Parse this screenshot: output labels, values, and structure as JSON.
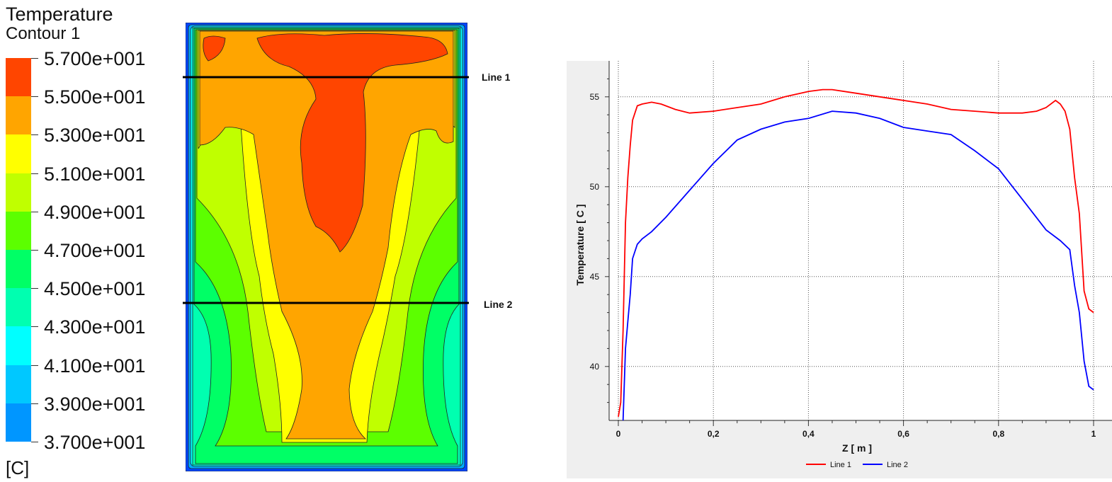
{
  "legend": {
    "title": "Temperature",
    "subtitle": "Contour 1",
    "unit": "[C]",
    "ticks": [
      "5.700e+001",
      "5.500e+001",
      "5.300e+001",
      "5.100e+001",
      "4.900e+001",
      "4.700e+001",
      "4.500e+001",
      "4.300e+001",
      "4.100e+001",
      "3.900e+001",
      "3.700e+001"
    ],
    "colors": [
      "#ff4500",
      "#ffa500",
      "#ffff00",
      "#c0ff00",
      "#5cff00",
      "#00ff66",
      "#00ffb0",
      "#00ffff",
      "#00c8ff",
      "#0096ff",
      "#0046ff"
    ]
  },
  "contour": {
    "line_labels": [
      "Line 1",
      "Line 2"
    ]
  },
  "chart_data": {
    "type": "line",
    "xlabel": "Z [ m ]",
    "ylabel": "Temperature [ C ]",
    "xlim": [
      0,
      1
    ],
    "ylim": [
      37,
      57
    ],
    "x_ticks": [
      "0",
      "0,2",
      "0,4",
      "0,6",
      "0,8",
      "1"
    ],
    "y_ticks": [
      "40",
      "45",
      "50",
      "55"
    ],
    "grid": true,
    "legend_position": "bottom",
    "series": [
      {
        "name": "Line 1",
        "color": "#ff0000",
        "x": [
          0.0,
          0.005,
          0.01,
          0.015,
          0.02,
          0.025,
          0.03,
          0.04,
          0.05,
          0.07,
          0.09,
          0.12,
          0.15,
          0.2,
          0.25,
          0.3,
          0.35,
          0.4,
          0.43,
          0.45,
          0.5,
          0.55,
          0.6,
          0.65,
          0.7,
          0.75,
          0.8,
          0.85,
          0.88,
          0.9,
          0.92,
          0.93,
          0.94,
          0.95,
          0.96,
          0.97,
          0.98,
          0.99,
          1.0
        ],
        "y": [
          37.2,
          38.0,
          42.0,
          48.0,
          50.5,
          52.3,
          53.7,
          54.5,
          54.6,
          54.7,
          54.6,
          54.3,
          54.1,
          54.2,
          54.4,
          54.6,
          55.0,
          55.3,
          55.4,
          55.4,
          55.2,
          55.0,
          54.8,
          54.6,
          54.3,
          54.2,
          54.1,
          54.1,
          54.2,
          54.4,
          54.8,
          54.6,
          54.2,
          53.2,
          50.5,
          48.5,
          44.2,
          43.2,
          43.0
        ]
      },
      {
        "name": "Line 2",
        "color": "#0000ff",
        "x": [
          0.01,
          0.015,
          0.02,
          0.025,
          0.03,
          0.04,
          0.05,
          0.07,
          0.1,
          0.15,
          0.2,
          0.25,
          0.3,
          0.35,
          0.4,
          0.45,
          0.5,
          0.55,
          0.6,
          0.65,
          0.7,
          0.75,
          0.8,
          0.85,
          0.9,
          0.93,
          0.95,
          0.96,
          0.97,
          0.98,
          0.99,
          1.0
        ],
        "y": [
          37.0,
          41.0,
          42.5,
          44.0,
          46.0,
          46.8,
          47.1,
          47.5,
          48.3,
          49.8,
          51.3,
          52.6,
          53.2,
          53.6,
          53.8,
          54.2,
          54.1,
          53.8,
          53.3,
          53.1,
          52.9,
          52.0,
          51.0,
          49.3,
          47.6,
          47.0,
          46.5,
          44.5,
          43.0,
          40.3,
          38.9,
          38.7
        ]
      }
    ]
  }
}
